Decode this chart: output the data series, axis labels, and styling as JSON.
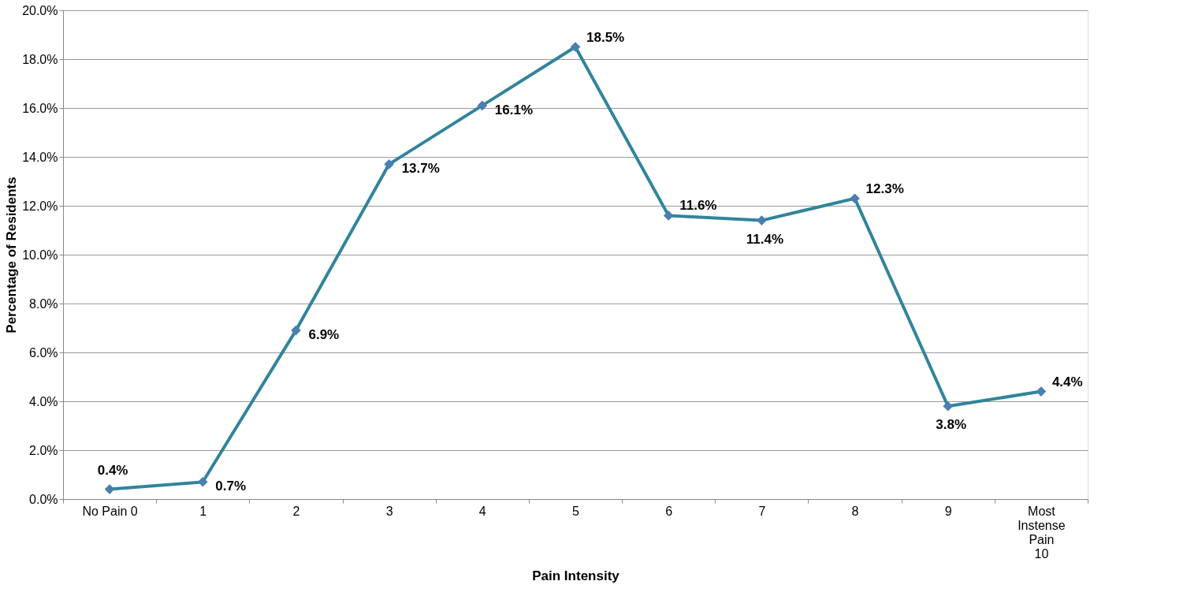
{
  "chart_data": {
    "type": "line",
    "xlabel": "Pain Intensity",
    "ylabel": "Percentage of Residents",
    "categories": [
      "No Pain 0",
      "1",
      "2",
      "3",
      "4",
      "5",
      "6",
      "7",
      "8",
      "9",
      "Most Instense Pain 10"
    ],
    "series": [
      {
        "color": "#31849b",
        "values": [
          0.4,
          0.7,
          6.9,
          13.7,
          16.1,
          18.5,
          11.6,
          11.4,
          12.3,
          3.8,
          4.4
        ],
        "value_labels": [
          "0.4%",
          "0.7%",
          "6.9%",
          "13.7%",
          "16.1%",
          "18.5%",
          "11.6%",
          "11.4%",
          "12.3%",
          "3.8%",
          "4.4%"
        ]
      }
    ],
    "ylim": [
      0,
      20
    ],
    "yticks": [
      {
        "value": 0,
        "label": "0.0%"
      },
      {
        "value": 2,
        "label": "2.0%"
      },
      {
        "value": 4,
        "label": "4.0%"
      },
      {
        "value": 6,
        "label": "6.0%"
      },
      {
        "value": 8,
        "label": "8.0%"
      },
      {
        "value": 10,
        "label": "10.0%"
      },
      {
        "value": 12,
        "label": "12.0%"
      },
      {
        "value": 14,
        "label": "14.0%"
      },
      {
        "value": 16,
        "label": "16.0%"
      },
      {
        "value": 18,
        "label": "18.0%"
      },
      {
        "value": 20,
        "label": "20.0%"
      }
    ],
    "grid": "y",
    "marker": "diamond",
    "line_style": "solid"
  }
}
